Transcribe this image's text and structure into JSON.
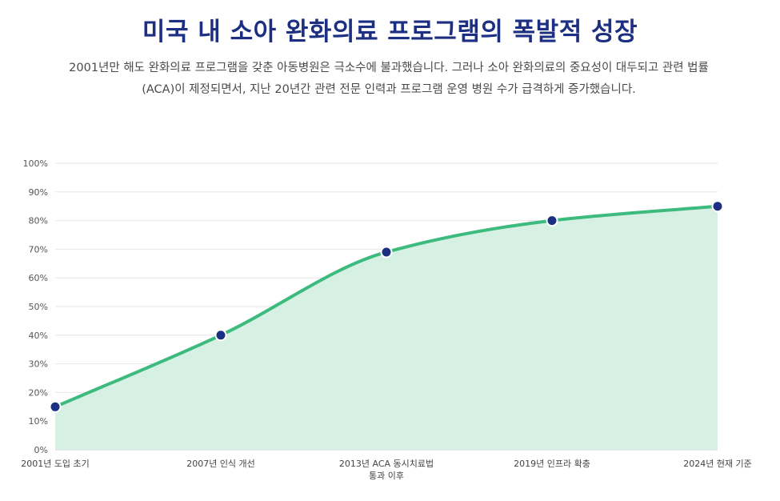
{
  "header": {
    "title": "미국 내 소아 완화의료 프로그램의 폭발적 성장",
    "subtitle": "2001년만 해도 완화의료 프로그램을 갖춘 아동병원은 극소수에 불과했습니다. 그러나 소아 완화의료의 중요성이 대두되고 관련 법률(ACA)이 제정되면서, 지난 20년간 관련 전문 인력과 프로그램 운영 병원 수가 급격하게 증가했습니다."
  },
  "colors": {
    "title": "#1d2f82",
    "line": "#3dba7e",
    "area": "#d7f0e4",
    "marker": "#1d2f82",
    "grid": "#e6e6e6"
  },
  "chart_data": {
    "type": "area",
    "categories": [
      "2001년 도입 초기",
      "2007년 인식 개선",
      "2013년 ACA 동시치료법 통과 이후",
      "2019년 인프라 확충",
      "2024년 현재 기준"
    ],
    "category_lines": [
      [
        "2001년 도입 초기"
      ],
      [
        "2007년 인식 개선"
      ],
      [
        "2013년 ACA 동시치료법",
        "통과 이후"
      ],
      [
        "2019년 인프라 확충"
      ],
      [
        "2024년 현재 기준"
      ]
    ],
    "values": [
      15,
      40,
      69,
      80,
      85
    ],
    "ylim": [
      0,
      100
    ],
    "yticks": [
      0,
      10,
      20,
      30,
      40,
      50,
      60,
      70,
      80,
      90,
      100
    ],
    "ytick_labels": [
      "0%",
      "10%",
      "20%",
      "30%",
      "40%",
      "50%",
      "60%",
      "70%",
      "80%",
      "90%",
      "100%"
    ],
    "title": "미국 내 소아 완화의료 프로그램의 폭발적 성장",
    "xlabel": "",
    "ylabel": "",
    "grid": true,
    "legend": false
  }
}
